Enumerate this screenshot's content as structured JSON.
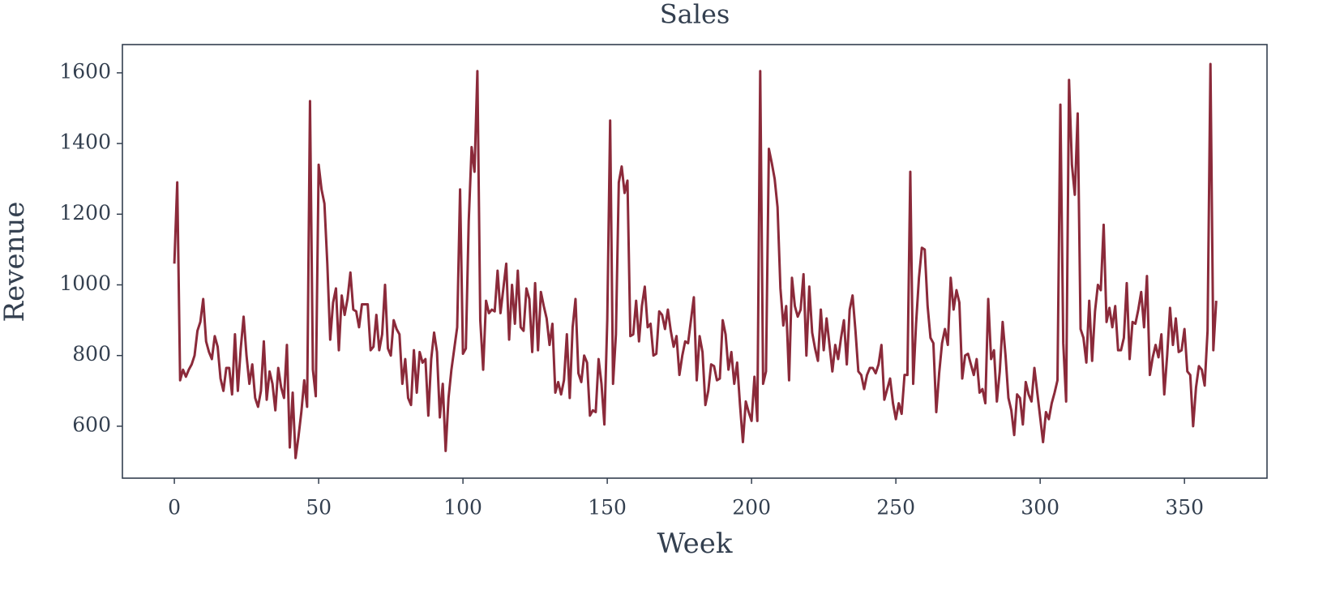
{
  "chart_data": {
    "type": "line",
    "title": "Sales",
    "xlabel": "Week",
    "ylabel": "Revenue",
    "xlim": [
      -18,
      378.6
    ],
    "ylim": [
      453,
      1680
    ],
    "xticks": [
      0,
      50,
      100,
      150,
      200,
      250,
      300,
      350
    ],
    "yticks": [
      600,
      800,
      1000,
      1200,
      1400,
      1600
    ],
    "grid": false,
    "x": [
      0,
      1,
      2,
      3,
      4,
      5,
      6,
      7,
      8,
      9,
      10,
      11,
      12,
      13,
      14,
      15,
      16,
      17,
      18,
      19,
      20,
      21,
      22,
      23,
      24,
      25,
      26,
      27,
      28,
      29,
      30,
      31,
      32,
      33,
      34,
      35,
      36,
      37,
      38,
      39,
      40,
      41,
      42,
      43,
      44,
      45,
      46,
      47,
      48,
      49,
      50,
      51,
      52,
      53,
      54,
      55,
      56,
      57,
      58,
      59,
      60,
      61,
      62,
      63,
      64,
      65,
      66,
      67,
      68,
      69,
      70,
      71,
      72,
      73,
      74,
      75,
      76,
      77,
      78,
      79,
      80,
      81,
      82,
      83,
      84,
      85,
      86,
      87,
      88,
      89,
      90,
      91,
      92,
      93,
      94,
      95,
      96,
      97,
      98,
      99,
      100,
      101,
      102,
      103,
      104,
      105,
      106,
      107,
      108,
      109,
      110,
      111,
      112,
      113,
      114,
      115,
      116,
      117,
      118,
      119,
      120,
      121,
      122,
      123,
      124,
      125,
      126,
      127,
      128,
      129,
      130,
      131,
      132,
      133,
      134,
      135,
      136,
      137,
      138,
      139,
      140,
      141,
      142,
      143,
      144,
      145,
      146,
      147,
      148,
      149,
      150,
      151,
      152,
      153,
      154,
      155,
      156,
      157,
      158,
      159,
      160,
      161,
      162,
      163,
      164,
      165,
      166,
      167,
      168,
      169,
      170,
      171,
      172,
      173,
      174,
      175,
      176,
      177,
      178,
      179,
      180,
      181,
      182,
      183,
      184,
      185,
      186,
      187,
      188,
      189,
      190,
      191,
      192,
      193,
      194,
      195,
      196,
      197,
      198,
      199,
      200,
      201,
      202,
      203,
      204,
      205,
      206,
      207,
      208,
      209,
      210,
      211,
      212,
      213,
      214,
      215,
      216,
      217,
      218,
      219,
      220,
      221,
      222,
      223,
      224,
      225,
      226,
      227,
      228,
      229,
      230,
      231,
      232,
      233,
      234,
      235,
      236,
      237,
      238,
      239,
      240,
      241,
      242,
      243,
      244,
      245,
      246,
      247,
      248,
      249,
      250,
      251,
      252,
      253,
      254,
      255,
      256,
      257,
      258,
      259,
      260,
      261,
      262,
      263,
      264,
      265,
      266,
      267,
      268,
      269,
      270,
      271,
      272,
      273,
      274,
      275,
      276,
      277,
      278,
      279,
      280,
      281,
      282,
      283,
      284,
      285,
      286,
      287,
      288,
      289,
      290,
      291,
      292,
      293,
      294,
      295,
      296,
      297,
      298,
      299,
      300,
      301,
      302,
      303,
      304,
      305,
      306,
      307,
      308,
      309,
      310,
      311,
      312,
      313,
      314,
      315,
      316,
      317,
      318,
      319,
      320,
      321,
      322,
      323,
      324,
      325,
      326,
      327,
      328,
      329,
      330,
      331,
      332,
      333,
      334,
      335,
      336,
      337,
      338,
      339,
      340,
      341,
      342,
      343,
      344,
      345,
      346,
      347,
      348,
      349,
      350,
      351,
      352,
      353,
      354,
      355,
      356,
      357,
      358,
      359,
      360,
      361
    ],
    "series": [
      {
        "name": "Revenue",
        "color": "#8b2a3a",
        "values": [
          1060,
          1290,
          730,
          760,
          740,
          760,
          775,
          800,
          870,
          895,
          960,
          840,
          810,
          790,
          855,
          825,
          735,
          700,
          765,
          765,
          690,
          860,
          700,
          820,
          910,
          800,
          720,
          775,
          680,
          655,
          700,
          840,
          675,
          755,
          720,
          645,
          765,
          710,
          680,
          830,
          540,
          695,
          510,
          570,
          640,
          730,
          655,
          1520,
          760,
          685,
          1340,
          1270,
          1230,
          1060,
          845,
          950,
          990,
          815,
          970,
          915,
          960,
          1035,
          930,
          925,
          880,
          945,
          945,
          945,
          815,
          825,
          915,
          815,
          860,
          1000,
          820,
          800,
          900,
          875,
          860,
          720,
          790,
          680,
          660,
          815,
          695,
          810,
          780,
          790,
          630,
          790,
          865,
          810,
          625,
          720,
          530,
          680,
          760,
          820,
          880,
          1270,
          805,
          820,
          1180,
          1390,
          1320,
          1605,
          900,
          760,
          955,
          920,
          930,
          925,
          1040,
          920,
          990,
          1060,
          845,
          1000,
          890,
          1040,
          880,
          870,
          990,
          960,
          810,
          1005,
          815,
          980,
          940,
          905,
          830,
          890,
          695,
          725,
          690,
          730,
          860,
          680,
          880,
          960,
          750,
          725,
          800,
          780,
          630,
          645,
          640,
          790,
          720,
          605,
          900,
          1465,
          720,
          860,
          1290,
          1335,
          1260,
          1295,
          855,
          860,
          955,
          840,
          940,
          995,
          880,
          890,
          800,
          805,
          925,
          915,
          875,
          930,
          870,
          825,
          855,
          745,
          800,
          840,
          835,
          900,
          965,
          730,
          855,
          810,
          660,
          700,
          775,
          770,
          730,
          735,
          900,
          860,
          760,
          810,
          720,
          780,
          660,
          555,
          670,
          640,
          615,
          740,
          615,
          1605,
          720,
          755,
          1385,
          1345,
          1300,
          1220,
          990,
          885,
          940,
          730,
          1020,
          940,
          910,
          930,
          1030,
          800,
          995,
          865,
          820,
          785,
          930,
          815,
          905,
          830,
          755,
          830,
          790,
          850,
          900,
          775,
          930,
          970,
          870,
          755,
          745,
          705,
          745,
          765,
          765,
          750,
          775,
          830,
          675,
          705,
          735,
          665,
          620,
          665,
          635,
          745,
          745,
          1320,
          720,
          890,
          1020,
          1105,
          1100,
          940,
          850,
          835,
          640,
          750,
          835,
          875,
          830,
          1020,
          930,
          985,
          950,
          735,
          800,
          805,
          775,
          745,
          790,
          695,
          705,
          665,
          960,
          790,
          815,
          670,
          755,
          895,
          800,
          680,
          645,
          575,
          690,
          680,
          605,
          725,
          690,
          670,
          765,
          695,
          625,
          555,
          640,
          620,
          665,
          695,
          730,
          1510,
          835,
          670,
          1580,
          1340,
          1255,
          1485,
          875,
          850,
          780,
          955,
          785,
          925,
          1000,
          985,
          1170,
          895,
          935,
          880,
          940,
          815,
          815,
          850,
          1005,
          790,
          895,
          890,
          930,
          980,
          880,
          1025,
          745,
          795,
          830,
          795,
          860,
          690,
          800,
          935,
          830,
          905,
          810,
          815,
          875,
          755,
          745,
          600,
          710,
          770,
          760,
          715,
          870,
          1625,
          815,
          955
        ]
      }
    ]
  }
}
